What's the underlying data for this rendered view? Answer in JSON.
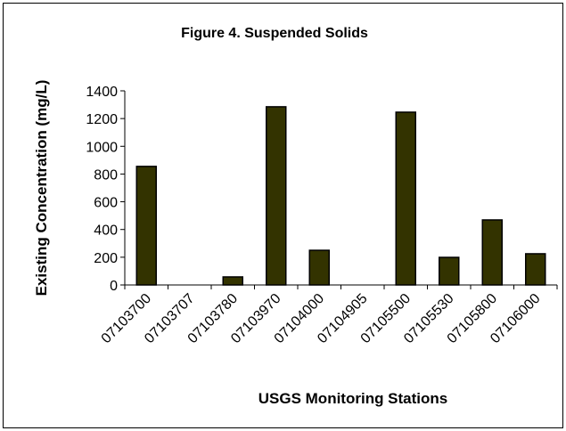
{
  "chart_data": {
    "type": "bar",
    "title": "Figure 4.  Suspended Solids",
    "x_label": "USGS Monitoring Stations",
    "y_label": "Existing Concentration (mg/L)",
    "categories": [
      "07103700",
      "07103707",
      "07103780",
      "07103970",
      "07104000",
      "07104905",
      "07105500",
      "07105530",
      "07105800",
      "07106000"
    ],
    "values": [
      855,
      0,
      58,
      1285,
      250,
      0,
      1246,
      199,
      469,
      225
    ],
    "color": "#333300",
    "ylim": [
      0,
      1400
    ],
    "yticks": [
      0,
      200,
      400,
      600,
      800,
      1000,
      1200,
      1400
    ],
    "grid": false
  }
}
